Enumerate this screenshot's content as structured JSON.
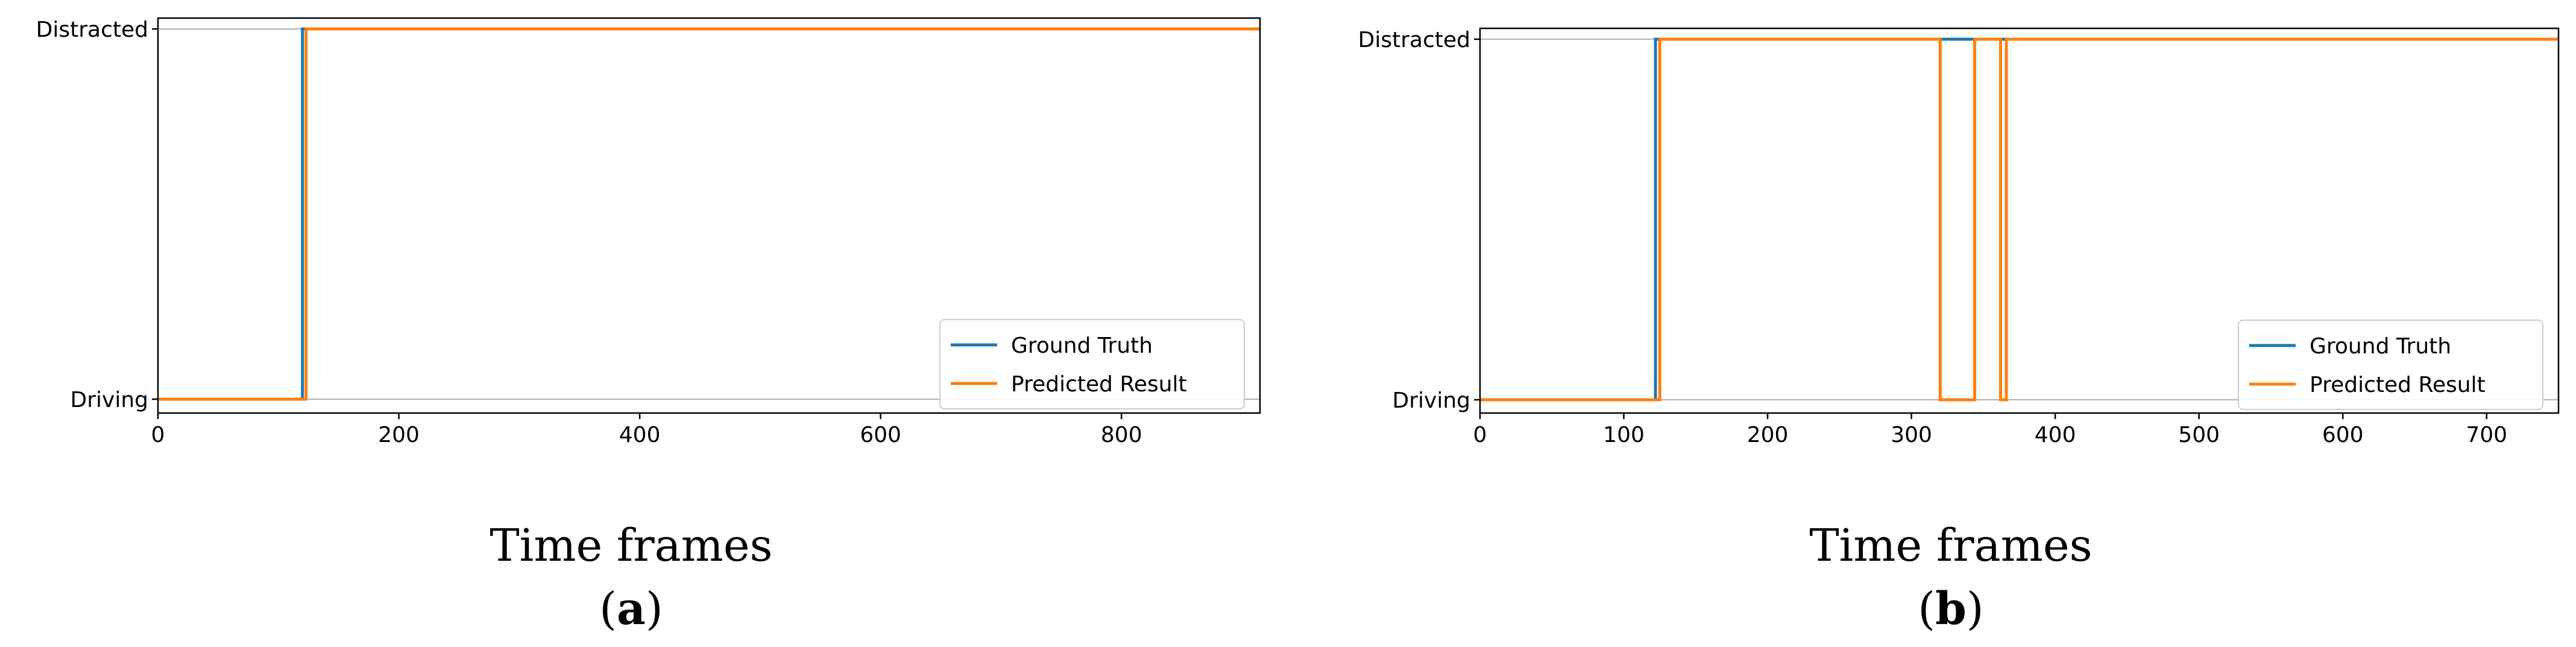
{
  "chart_data": [
    {
      "type": "line",
      "panel_label": "a",
      "xlabel": "Time frames",
      "xlim": [
        0,
        915
      ],
      "xticks": [
        0,
        200,
        400,
        600,
        800
      ],
      "y_categories": [
        "Driving",
        "Distracted"
      ],
      "legend_position": "lower-right",
      "grid": "y-only",
      "series": [
        {
          "name": "Ground Truth",
          "color": "#1f77b4",
          "points": [
            [
              0,
              0
            ],
            [
              120,
              0
            ],
            [
              120,
              1
            ],
            [
              915,
              1
            ]
          ]
        },
        {
          "name": "Predicted Result",
          "color": "#ff7f0e",
          "points": [
            [
              0,
              0
            ],
            [
              123,
              0
            ],
            [
              123,
              1
            ],
            [
              915,
              1
            ]
          ]
        }
      ]
    },
    {
      "type": "line",
      "panel_label": "b",
      "xlabel": "Time frames",
      "xlim": [
        0,
        750
      ],
      "xticks": [
        0,
        100,
        200,
        300,
        400,
        500,
        600,
        700
      ],
      "y_categories": [
        "Driving",
        "Distracted"
      ],
      "legend_position": "lower-right",
      "grid": "y-only",
      "series": [
        {
          "name": "Ground Truth",
          "color": "#1f77b4",
          "points": [
            [
              0,
              0
            ],
            [
              122,
              0
            ],
            [
              122,
              1
            ],
            [
              750,
              1
            ]
          ]
        },
        {
          "name": "Predicted Result",
          "color": "#ff7f0e",
          "points": [
            [
              0,
              0
            ],
            [
              125,
              0
            ],
            [
              125,
              1
            ],
            [
              320,
              1
            ],
            [
              320,
              0
            ],
            [
              344,
              0
            ],
            [
              344,
              1
            ],
            [
              362,
              1
            ],
            [
              362,
              0
            ],
            [
              366,
              0
            ],
            [
              366,
              1
            ],
            [
              750,
              1
            ]
          ]
        }
      ]
    }
  ]
}
